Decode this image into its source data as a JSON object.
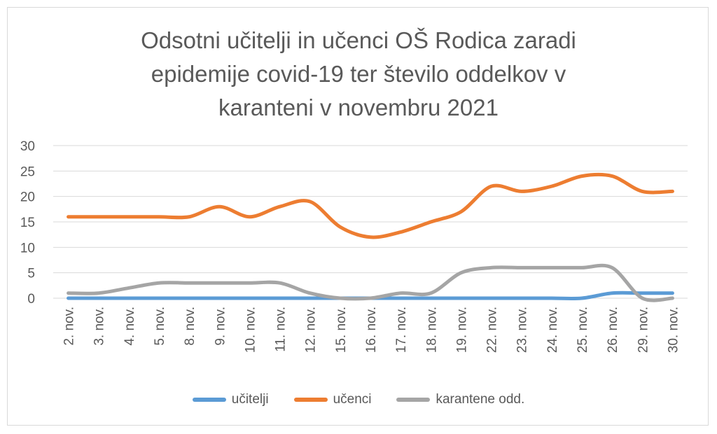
{
  "chart_data": {
    "type": "line",
    "title_lines": [
      "Odsotni učitelji in učenci OŠ Rodica zaradi",
      "epidemije covid-19 ter število oddelkov v",
      "karanteni v novembru 2021"
    ],
    "xlabel": "",
    "ylabel": "",
    "ylim": [
      0,
      30
    ],
    "yticks": [
      0,
      5,
      10,
      15,
      20,
      25,
      30
    ],
    "grid": true,
    "legend_position": "bottom",
    "categories": [
      "2. nov.",
      "3. nov.",
      "4. nov.",
      "5. nov.",
      "8. nov.",
      "9. nov.",
      "10. nov.",
      "11. nov.",
      "12. nov.",
      "15. nov.",
      "16. nov.",
      "17. nov.",
      "18. nov.",
      "19. nov.",
      "22. nov.",
      "23. nov.",
      "24. nov.",
      "25. nov.",
      "26. nov.",
      "29. nov.",
      "30. nov."
    ],
    "series": [
      {
        "name": "učitelji",
        "color": "#5b9bd5",
        "values": [
          0,
          0,
          0,
          0,
          0,
          0,
          0,
          0,
          0,
          0,
          0,
          0,
          0,
          0,
          0,
          0,
          0,
          0,
          1,
          1,
          1
        ]
      },
      {
        "name": "učenci",
        "color": "#ed7d31",
        "values": [
          16,
          16,
          16,
          16,
          16,
          18,
          16,
          18,
          19,
          14,
          12,
          13,
          15,
          17,
          22,
          21,
          22,
          24,
          24,
          21,
          21
        ]
      },
      {
        "name": "karantene odd.",
        "color": "#a5a5a5",
        "values": [
          1,
          1,
          2,
          3,
          3,
          3,
          3,
          3,
          1,
          0,
          0,
          1,
          1,
          5,
          6,
          6,
          6,
          6,
          6,
          0,
          0
        ]
      }
    ]
  }
}
